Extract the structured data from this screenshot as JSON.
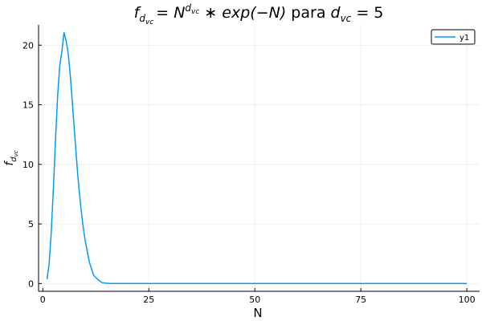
{
  "chart_data": {
    "type": "line",
    "title": {
      "f": "f",
      "f_sub": "d",
      "f_subsub": "vc",
      "eq": "= ",
      "N": "N",
      "N_sup": "d",
      "N_supsub": "vc",
      "mid": " ∗ exp(−N)",
      "para": " para ",
      "d": "d",
      "d_sub": "vc",
      "tail": " = 5"
    },
    "xlabel": "N",
    "ylabel": {
      "f": "f",
      "sub": "d",
      "subsub": "vc"
    },
    "xlim": [
      -1,
      103
    ],
    "ylim": [
      -0.65,
      21.7
    ],
    "xticks": [
      0,
      25,
      50,
      75,
      100
    ],
    "xtick_labels": [
      "0",
      "25",
      "50",
      "75",
      "100"
    ],
    "yticks": [
      0,
      5,
      10,
      15,
      20
    ],
    "ytick_labels": [
      "0",
      "5",
      "10",
      "15",
      "20"
    ],
    "grid": true,
    "legend_position": "top-right",
    "series": [
      {
        "name": "y1",
        "color": "#009af9",
        "x": [
          1,
          1.5,
          2,
          2.5,
          3,
          3.5,
          4,
          4.5,
          5,
          5.5,
          6,
          6.5,
          7,
          7.5,
          8,
          8.5,
          9,
          9.5,
          10,
          11,
          12,
          13,
          14,
          15,
          16,
          17,
          18,
          19,
          20,
          22,
          25,
          30,
          40,
          50,
          60,
          70,
          80,
          90,
          100
        ],
        "y": [
          0.37,
          1.69,
          4.33,
          8.02,
          12.1,
          15.78,
          18.32,
          19.44,
          21.05,
          20.38,
          19.27,
          17.38,
          15.04,
          12.59,
          10.23,
          8.11,
          6.3,
          4.79,
          3.58,
          1.79,
          0.69,
          0.33,
          0.07,
          0.03,
          0.01,
          0.0,
          0.0,
          0.0,
          0.0,
          0.0,
          0.0,
          0.0,
          0.0,
          0.0,
          0.0,
          0.0,
          0.0,
          0.0,
          0.0
        ]
      }
    ]
  }
}
